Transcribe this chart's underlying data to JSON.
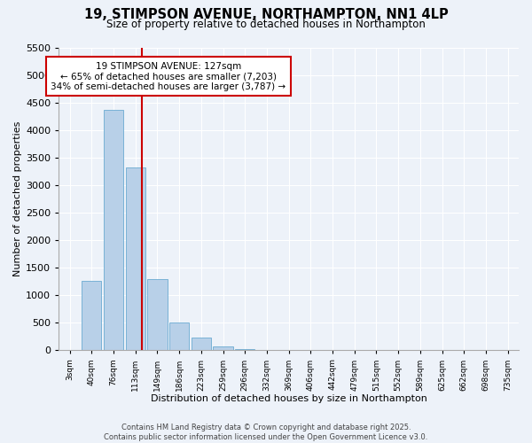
{
  "title": "19, STIMPSON AVENUE, NORTHAMPTON, NN1 4LP",
  "subtitle": "Size of property relative to detached houses in Northampton",
  "xlabel": "Distribution of detached houses by size in Northampton",
  "ylabel": "Number of detached properties",
  "categories": [
    "3sqm",
    "40sqm",
    "76sqm",
    "113sqm",
    "149sqm",
    "186sqm",
    "223sqm",
    "259sqm",
    "296sqm",
    "332sqm",
    "369sqm",
    "406sqm",
    "442sqm",
    "479sqm",
    "515sqm",
    "552sqm",
    "589sqm",
    "625sqm",
    "662sqm",
    "698sqm",
    "735sqm"
  ],
  "values": [
    0,
    1270,
    4380,
    3330,
    1290,
    500,
    230,
    75,
    20,
    5,
    2,
    1,
    0,
    0,
    0,
    0,
    0,
    0,
    0,
    0,
    0
  ],
  "bar_color": "#b8d0e8",
  "bar_edge_color": "#6aabd2",
  "vline_color": "#cc0000",
  "annotation_title": "19 STIMPSON AVENUE: 127sqm",
  "annotation_line1": "← 65% of detached houses are smaller (7,203)",
  "annotation_line2": "34% of semi-detached houses are larger (3,787) →",
  "annotation_box_facecolor": "#ffffff",
  "annotation_box_edgecolor": "#cc0000",
  "footer1": "Contains HM Land Registry data © Crown copyright and database right 2025.",
  "footer2": "Contains public sector information licensed under the Open Government Licence v3.0.",
  "ylim": [
    0,
    5500
  ],
  "yticks": [
    0,
    500,
    1000,
    1500,
    2000,
    2500,
    3000,
    3500,
    4000,
    4500,
    5000,
    5500
  ],
  "background_color": "#edf2f9",
  "grid_color": "#ffffff",
  "figsize": [
    6.0,
    5.0
  ],
  "dpi": 100
}
